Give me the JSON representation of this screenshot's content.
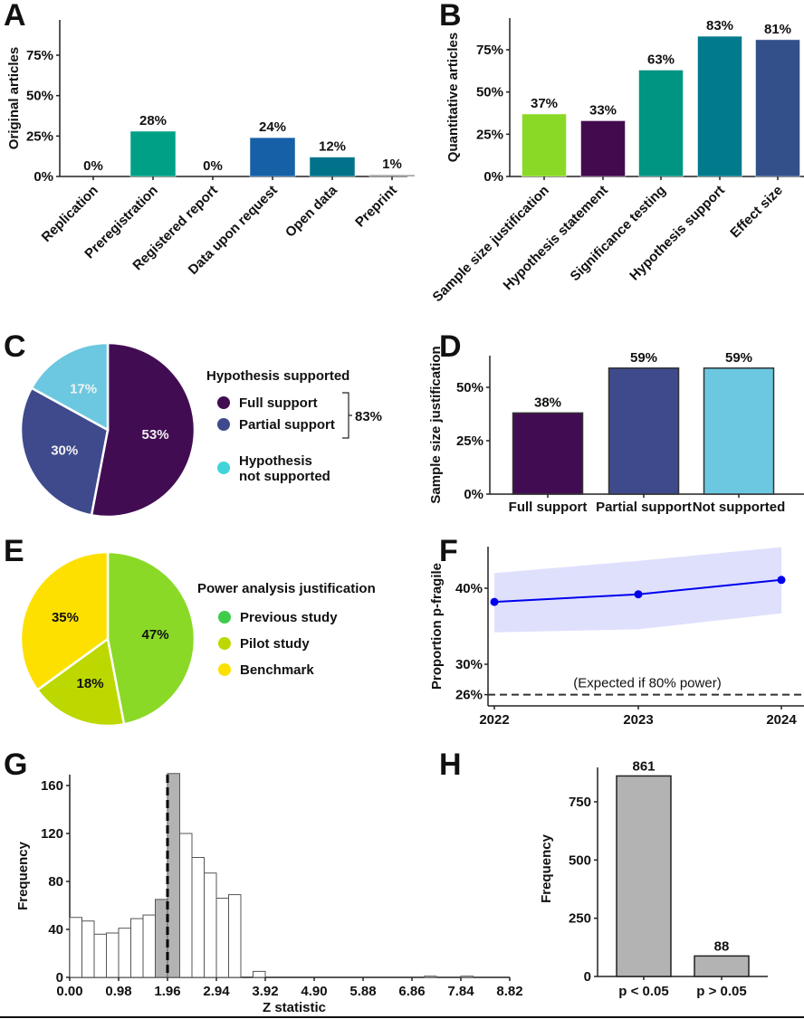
{
  "chart_data": [
    {
      "panel": "A",
      "type": "bar",
      "ylabel": "Original articles",
      "xlabel": "",
      "ylim": [
        0,
        0.95
      ],
      "yticks": [
        "0%",
        "25%",
        "50%",
        "75%"
      ],
      "categories": [
        "Replication",
        "Preregistration",
        "Registered report",
        "Data upon request",
        "Open data",
        "Preprint"
      ],
      "values": [
        0,
        28,
        0,
        24,
        12,
        1
      ],
      "labels": [
        "0%",
        "28%",
        "0%",
        "24%",
        "12%",
        "1%"
      ],
      "colors": [
        "#21918c",
        "#00a087",
        "#1f5fa0",
        "#1560a6",
        "#00728a",
        "#888888"
      ]
    },
    {
      "panel": "B",
      "type": "bar",
      "ylabel": "Quantitative articles",
      "ylim": [
        0,
        0.95
      ],
      "yticks": [
        "0%",
        "25%",
        "50%",
        "75%"
      ],
      "categories": [
        "Sample size justification",
        "Hypothesis statement",
        "Significance testing",
        "Hypothesis support",
        "Effect size"
      ],
      "values": [
        37,
        33,
        63,
        83,
        81
      ],
      "labels": [
        "37%",
        "33%",
        "63%",
        "83%",
        "81%"
      ],
      "colors": [
        "#8ad926",
        "#440a4e",
        "#009483",
        "#007a8c",
        "#33508a"
      ]
    },
    {
      "panel": "C",
      "type": "pie",
      "legend_title": "Hypothesis supported",
      "slices": [
        {
          "name": "Full support",
          "value": 53,
          "label": "53%",
          "color": "#420c52"
        },
        {
          "name": "Partial support",
          "value": 30,
          "label": "30%",
          "color": "#3e4a8c"
        },
        {
          "name": "Hypothesis not supported",
          "value": 17,
          "label": "17%",
          "color": "#6bc8e0"
        }
      ],
      "legend": [
        {
          "label": "Full support",
          "color": "#420c52"
        },
        {
          "label": "Partial support",
          "color": "#3e4a8c"
        },
        {
          "label_line1": "Hypothesis",
          "label_line2": "not supported",
          "color": "#40d4d8"
        }
      ],
      "bracket_label": "83%"
    },
    {
      "panel": "D",
      "type": "bar",
      "ylabel": "Sample size justification",
      "ylim": [
        0,
        0.64
      ],
      "yticks": [
        "0%",
        "25%",
        "50%"
      ],
      "categories": [
        "Full support",
        "Partial support",
        "Not supported"
      ],
      "values": [
        38,
        59,
        59
      ],
      "labels": [
        "38%",
        "59%",
        "59%"
      ],
      "colors": [
        "#420c52",
        "#3e4a8c",
        "#6bc8e0"
      ]
    },
    {
      "panel": "E",
      "type": "pie",
      "legend_title": "Power analysis justification",
      "slices": [
        {
          "name": "Previous study",
          "value": 47,
          "label": "47%",
          "color": "#8ad926"
        },
        {
          "name": "Pilot study",
          "value": 18,
          "label": "18%",
          "color": "#bcd800"
        },
        {
          "name": "Benchmark",
          "value": 35,
          "label": "35%",
          "color": "#fde000"
        }
      ],
      "legend": [
        {
          "label": "Previous study",
          "color": "#3fcc4a"
        },
        {
          "label": "Pilot study",
          "color": "#bcd800"
        },
        {
          "label": "Benchmark",
          "color": "#fde000"
        }
      ]
    },
    {
      "panel": "F",
      "type": "line",
      "ylabel": "Proportion p-fragile",
      "x": [
        "2022",
        "2023",
        "2024"
      ],
      "y": [
        38.2,
        39.2,
        41.1
      ],
      "ci_lower": [
        34.2,
        34.6,
        36.7
      ],
      "ci_upper": [
        42.0,
        43.6,
        45.4
      ],
      "ylim": [
        24.5,
        46.5
      ],
      "yticks": [
        "26%",
        "30%",
        "40%"
      ],
      "ytick_values": [
        26,
        30,
        40
      ],
      "reference_line": {
        "value": 26,
        "label": "(Expected if 80% power)"
      },
      "line_color": "#0000ee",
      "band_color": "#dfe0fc"
    },
    {
      "panel": "G",
      "type": "bar",
      "subtype": "histogram",
      "xlabel": "Z statistic",
      "ylabel": "Frequency",
      "bin_width": 0.245,
      "xlim": [
        0,
        8.82
      ],
      "ylim": [
        0,
        170
      ],
      "xticks": [
        "0.00",
        "0.98",
        "1.96",
        "2.94",
        "3.92",
        "4.90",
        "5.88",
        "6.86",
        "7.84",
        "8.82"
      ],
      "yticks": [
        "0",
        "40",
        "80",
        "120",
        "160"
      ],
      "ytick_values": [
        0,
        40,
        80,
        120,
        160
      ],
      "bin_starts": [
        0,
        0.245,
        0.49,
        0.735,
        0.98,
        1.225,
        1.47,
        1.715,
        1.96,
        2.205,
        2.45,
        2.695,
        2.94,
        3.185,
        3.43,
        3.675,
        7.105,
        7.84
      ],
      "values": [
        50,
        47,
        36,
        37,
        41,
        49,
        52,
        65,
        170,
        120,
        100,
        87,
        66,
        69,
        0,
        5,
        1,
        1
      ],
      "highlighted_bins": [
        7,
        8
      ],
      "highlight_color": "#b3b3b3",
      "threshold_line": 1.96
    },
    {
      "panel": "H",
      "type": "bar",
      "ylabel": "Frequency",
      "ylim": [
        0,
        900
      ],
      "yticks": [
        "0",
        "250",
        "500",
        "750"
      ],
      "ytick_values": [
        0,
        250,
        500,
        750
      ],
      "categories": [
        "p < 0.05",
        "p > 0.05"
      ],
      "values": [
        861,
        88
      ],
      "labels": [
        "861",
        "88"
      ],
      "color": "#b3b3b3"
    }
  ],
  "panel_letters": [
    "A",
    "B",
    "C",
    "D",
    "E",
    "F",
    "G",
    "H"
  ]
}
